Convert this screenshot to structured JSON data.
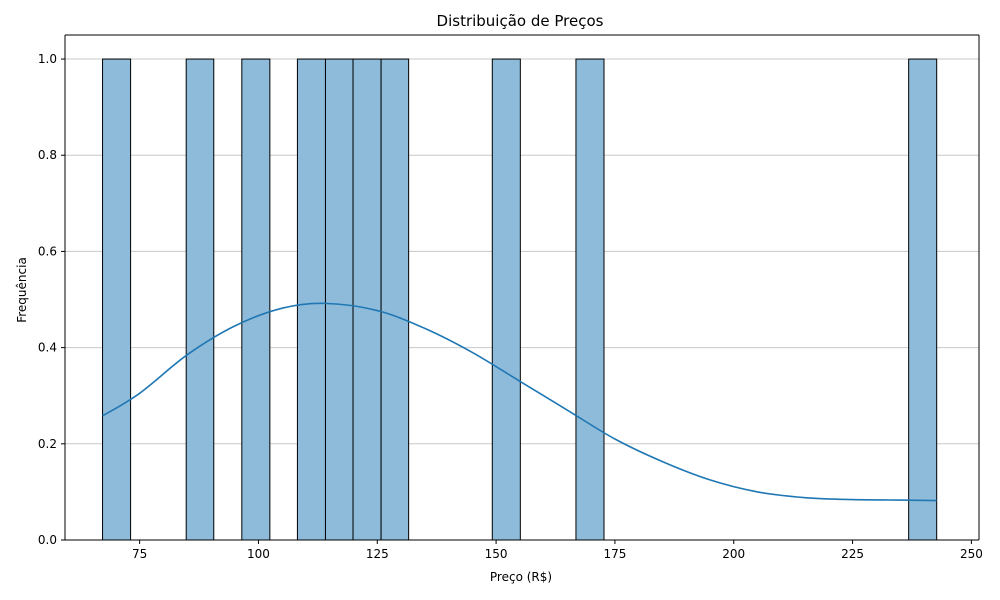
{
  "chart_data": {
    "type": "bar",
    "title": "Distribuição de Preços",
    "xlabel": "Preço (R$)",
    "ylabel": "Frequência",
    "xlim": [
      59.3,
      251.6
    ],
    "ylim": [
      0,
      1.05
    ],
    "xticks": [
      75,
      100,
      125,
      150,
      175,
      200,
      225,
      250
    ],
    "yticks": [
      0.0,
      0.2,
      0.4,
      0.6,
      0.8,
      1.0
    ],
    "ytick_labels": [
      "0.0",
      "0.2",
      "0.4",
      "0.6",
      "0.8",
      "1.0"
    ],
    "grid": "y",
    "bin_width": 5.86,
    "bins": [
      {
        "x0": 67.2,
        "x1": 73.1,
        "count": 1
      },
      {
        "x0": 84.8,
        "x1": 90.6,
        "count": 1
      },
      {
        "x0": 96.5,
        "x1": 102.4,
        "count": 1
      },
      {
        "x0": 108.2,
        "x1": 114.1,
        "count": 1
      },
      {
        "x0": 114.1,
        "x1": 119.9,
        "count": 1
      },
      {
        "x0": 119.9,
        "x1": 125.8,
        "count": 1
      },
      {
        "x0": 125.8,
        "x1": 131.6,
        "count": 1
      },
      {
        "x0": 149.2,
        "x1": 155.1,
        "count": 1
      },
      {
        "x0": 166.8,
        "x1": 172.7,
        "count": 1
      },
      {
        "x0": 236.8,
        "x1": 242.7,
        "count": 1
      }
    ],
    "kde": {
      "x": [
        67.2,
        75,
        85,
        95,
        105,
        114,
        125,
        135,
        145,
        155,
        165,
        175,
        185,
        195,
        205,
        215,
        225,
        235,
        242.7
      ],
      "y": [
        0.258,
        0.305,
        0.385,
        0.445,
        0.482,
        0.492,
        0.477,
        0.44,
        0.39,
        0.33,
        0.27,
        0.21,
        0.163,
        0.125,
        0.1,
        0.088,
        0.084,
        0.083,
        0.082
      ]
    },
    "colors": {
      "bar": "#8ebbd9",
      "line": "#1f77b4"
    }
  }
}
